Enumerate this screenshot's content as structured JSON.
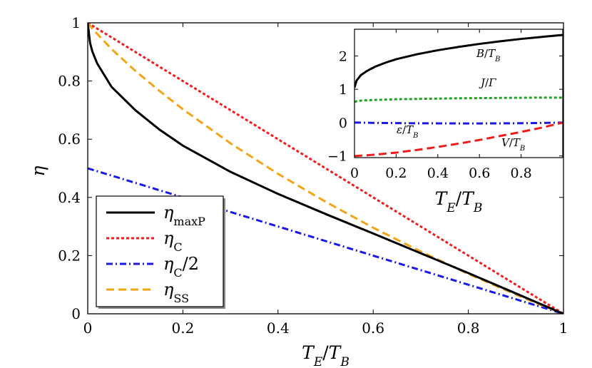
{
  "chart_data": [
    {
      "type": "line",
      "xlabel": "T_E/T_B",
      "ylabel": "η",
      "xlim": [
        0,
        1
      ],
      "ylim": [
        0,
        1
      ],
      "xticks": [
        "0",
        "0.2",
        "0.4",
        "0.6",
        "0.8",
        "1"
      ],
      "yticks": [
        "0",
        "0.2",
        "0.4",
        "0.6",
        "0.8",
        "1"
      ],
      "legend_position": "bottom-left",
      "x": [
        0,
        0.005,
        0.01,
        0.02,
        0.05,
        0.1,
        0.15,
        0.2,
        0.3,
        0.4,
        0.5,
        0.6,
        0.7,
        0.8,
        0.9,
        0.95,
        1.0
      ],
      "series": [
        {
          "name": "η_maxP",
          "color": "#000000",
          "style": "solid",
          "values": [
            1.0,
            0.93,
            0.9,
            0.86,
            0.78,
            0.7,
            0.634,
            0.578,
            0.488,
            0.412,
            0.343,
            0.276,
            0.208,
            0.14,
            0.07,
            0.035,
            0.0
          ]
        },
        {
          "name": "η_C",
          "color": "#ee1c1c",
          "style": "dotted",
          "values": [
            1.0,
            0.995,
            0.99,
            0.98,
            0.95,
            0.9,
            0.85,
            0.8,
            0.7,
            0.6,
            0.5,
            0.4,
            0.3,
            0.2,
            0.1,
            0.05,
            0.0
          ]
        },
        {
          "name": "η_C/2",
          "color": "#1a1ae6",
          "style": "dashdot",
          "values": [
            0.5,
            0.4975,
            0.495,
            0.49,
            0.475,
            0.45,
            0.425,
            0.4,
            0.35,
            0.3,
            0.25,
            0.2,
            0.15,
            0.1,
            0.05,
            0.025,
            0.0
          ]
        },
        {
          "name": "η_SS",
          "color": "#f5a416",
          "style": "dashed",
          "values": [
            1.0,
            0.99,
            0.98,
            0.962,
            0.91,
            0.835,
            0.767,
            0.703,
            0.586,
            0.481,
            0.385,
            0.296,
            0.214,
            0.137,
            0.066,
            0.032,
            0.0
          ]
        }
      ]
    },
    {
      "type": "line",
      "xlabel": "T_E/T_B",
      "ylabel": "",
      "xlim": [
        0,
        1
      ],
      "ylim": [
        -1.05,
        2.8
      ],
      "xticks": [
        "0",
        "0.2",
        "0.4",
        "0.6",
        "0.8"
      ],
      "yticks": [
        "−1",
        "0",
        "1",
        "2"
      ],
      "x": [
        0,
        0.01,
        0.03,
        0.06,
        0.1,
        0.15,
        0.2,
        0.3,
        0.4,
        0.5,
        0.6,
        0.7,
        0.8,
        0.9,
        1.0
      ],
      "series": [
        {
          "name": "B/T_B",
          "color": "#000000",
          "style": "solid",
          "values": [
            1.05,
            1.26,
            1.42,
            1.55,
            1.68,
            1.8,
            1.9,
            2.05,
            2.17,
            2.27,
            2.36,
            2.44,
            2.51,
            2.57,
            2.63
          ]
        },
        {
          "name": "J/Γ",
          "color": "#22a022",
          "style": "dotted",
          "values": [
            0.62,
            0.64,
            0.66,
            0.67,
            0.68,
            0.69,
            0.7,
            0.71,
            0.72,
            0.73,
            0.735,
            0.74,
            0.745,
            0.75,
            0.75
          ]
        },
        {
          "name": "ε/T_B",
          "color": "#1a1ae6",
          "style": "dashdot",
          "values": [
            0.0,
            0.0,
            0.0,
            -0.005,
            -0.01,
            -0.012,
            -0.015,
            -0.02,
            -0.022,
            -0.025,
            -0.025,
            -0.022,
            -0.018,
            -0.01,
            0.0
          ]
        },
        {
          "name": "V/T_B",
          "color": "#ee1c1c",
          "style": "dashed",
          "values": [
            -1.0,
            -0.998,
            -0.99,
            -0.98,
            -0.96,
            -0.93,
            -0.9,
            -0.82,
            -0.73,
            -0.63,
            -0.52,
            -0.4,
            -0.28,
            -0.15,
            0.0
          ]
        }
      ]
    }
  ]
}
